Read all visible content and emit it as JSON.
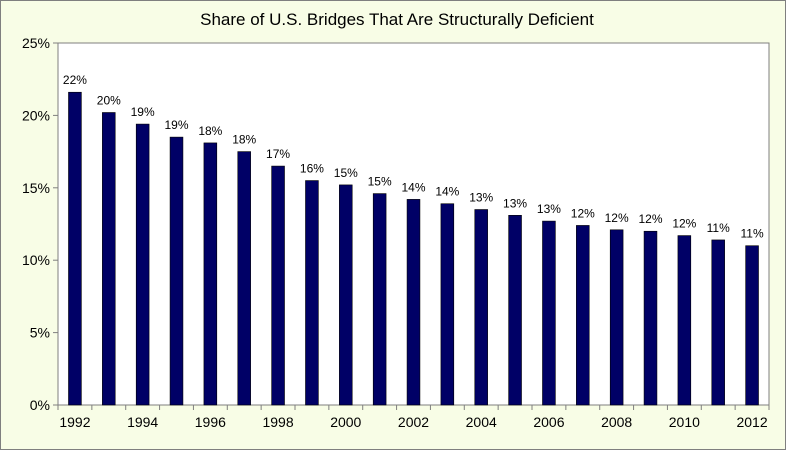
{
  "chart_data": {
    "type": "bar",
    "title": "Share of U.S. Bridges That Are Structurally Deficient",
    "xlabel": "",
    "ylabel": "",
    "ylim": [
      0,
      25
    ],
    "yticks": [
      "0%",
      "5%",
      "10%",
      "15%",
      "20%",
      "25%"
    ],
    "ytick_values": [
      0,
      5,
      10,
      15,
      20,
      25
    ],
    "xtick_labels": [
      "1992",
      "1994",
      "1996",
      "1998",
      "2000",
      "2002",
      "2004",
      "2006",
      "2008",
      "2010",
      "2012"
    ],
    "categories": [
      "1992",
      "1993",
      "1994",
      "1995",
      "1996",
      "1997",
      "1998",
      "1999",
      "2000",
      "2001",
      "2002",
      "2003",
      "2004",
      "2005",
      "2006",
      "2007",
      "2008",
      "2009",
      "2010",
      "2011",
      "2012"
    ],
    "values": [
      21.6,
      20.2,
      19.4,
      18.5,
      18.1,
      17.5,
      16.5,
      15.5,
      15.2,
      14.6,
      14.2,
      13.9,
      13.5,
      13.1,
      12.7,
      12.4,
      12.1,
      12.0,
      11.7,
      11.4,
      11.0
    ],
    "data_labels": [
      "22%",
      "20%",
      "19%",
      "19%",
      "18%",
      "18%",
      "17%",
      "16%",
      "15%",
      "15%",
      "14%",
      "14%",
      "13%",
      "13%",
      "13%",
      "12%",
      "12%",
      "12%",
      "12%",
      "11%",
      "11%"
    ],
    "bar_color": "#000066",
    "plot_background": "#ffffff",
    "chart_background": "#f8fde6",
    "grid": false,
    "legend": "none"
  }
}
